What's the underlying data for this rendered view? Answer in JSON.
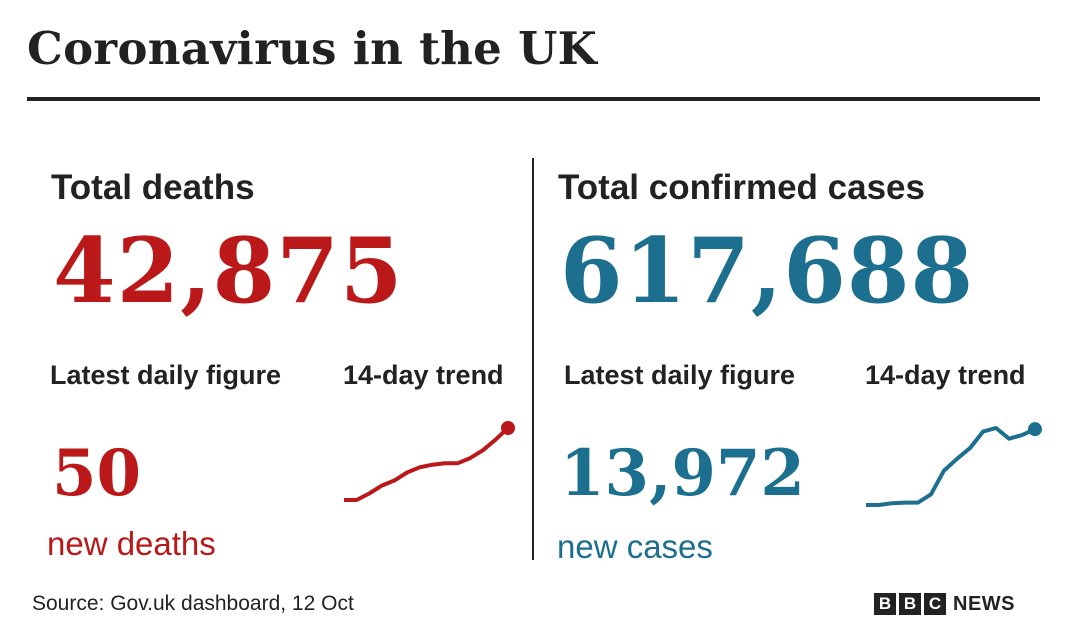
{
  "title": "Coronavirus in the UK",
  "colors": {
    "deaths": "#bb1919",
    "cases": "#1c6f8f",
    "text": "#222222"
  },
  "deaths": {
    "heading": "Total deaths",
    "total": "42,875",
    "daily_heading": "Latest daily figure",
    "trend_heading": "14-day trend",
    "daily_value": "50",
    "daily_unit": "new deaths"
  },
  "cases": {
    "heading": "Total confirmed cases",
    "total": "617,688",
    "daily_heading": "Latest daily figure",
    "trend_heading": "14-day trend",
    "daily_value": "13,972",
    "daily_unit": "new cases"
  },
  "source": "Source: Gov.uk dashboard, 12 Oct",
  "brand": {
    "letters": [
      "B",
      "B",
      "C"
    ],
    "news": "NEWS"
  },
  "chart_data": [
    {
      "type": "line",
      "x": [
        1,
        2,
        3,
        4,
        5,
        6,
        7,
        8,
        9,
        10,
        11,
        12,
        13,
        14
      ],
      "values": [
        0,
        0,
        10,
        22,
        30,
        42,
        50,
        54,
        56,
        56,
        64,
        76,
        92,
        110
      ],
      "end_marker": true,
      "grid": false
    },
    {
      "type": "line",
      "x": [
        1,
        2,
        3,
        4,
        5,
        6,
        7,
        8,
        9,
        10,
        11,
        12,
        13,
        14
      ],
      "values": [
        0,
        0,
        3,
        4,
        4,
        18,
        58,
        78,
        96,
        124,
        130,
        112,
        118,
        128
      ],
      "end_marker": true,
      "grid": false
    }
  ]
}
